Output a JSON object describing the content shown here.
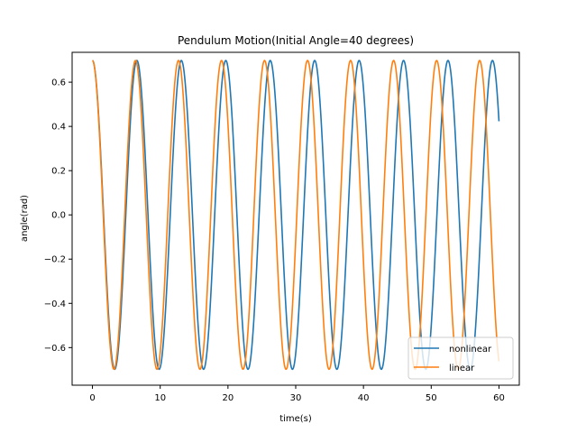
{
  "chart_data": {
    "type": "line",
    "title": "Pendulum Motion(Initial Angle=40 degrees)",
    "xlabel": "time(s)",
    "ylabel": "angle(rad)",
    "xlim": [
      -3,
      63
    ],
    "ylim": [
      -0.77,
      0.735
    ],
    "x_ticks": [
      0,
      10,
      20,
      30,
      40,
      50,
      60
    ],
    "x_tick_labels": [
      "0",
      "10",
      "20",
      "30",
      "40",
      "50",
      "60"
    ],
    "y_ticks": [
      -0.6,
      -0.4,
      -0.2,
      0.0,
      0.2,
      0.4,
      0.6
    ],
    "y_tick_labels": [
      "−0.6",
      "−0.4",
      "−0.2",
      "0.0",
      "0.2",
      "0.4",
      "0.6"
    ],
    "grid": false,
    "legend_position": "lower-right",
    "x_range": [
      0,
      60
    ],
    "series": [
      {
        "name": "nonlinear",
        "color": "#1f77b4",
        "amplitude": 0.698,
        "period": 6.56,
        "x": [
          0,
          1.64,
          3.28,
          4.92,
          6.56,
          8.2,
          9.84,
          11.48,
          13.12,
          19.68,
          26.24,
          32.8,
          39.36,
          45.92,
          52.48,
          57.4,
          59.04,
          60
        ],
        "y": [
          0.698,
          0.0,
          -0.698,
          0.0,
          0.698,
          0.0,
          -0.698,
          0.0,
          0.698,
          0.698,
          0.698,
          0.698,
          0.698,
          0.698,
          0.698,
          0.0,
          -0.698,
          0.41
        ]
      },
      {
        "name": "linear",
        "color": "#ff7f0e",
        "amplitude": 0.698,
        "period": 6.35,
        "x": [
          0,
          1.59,
          3.17,
          4.76,
          6.35,
          7.94,
          9.52,
          11.11,
          12.69,
          19.04,
          25.39,
          31.73,
          38.08,
          44.43,
          50.77,
          57.12,
          58.71,
          60
        ],
        "y": [
          0.698,
          0.0,
          -0.698,
          0.0,
          0.698,
          0.0,
          -0.698,
          0.0,
          0.698,
          0.698,
          0.698,
          0.698,
          0.698,
          0.698,
          0.698,
          0.698,
          0.0,
          -0.652
        ]
      }
    ]
  }
}
